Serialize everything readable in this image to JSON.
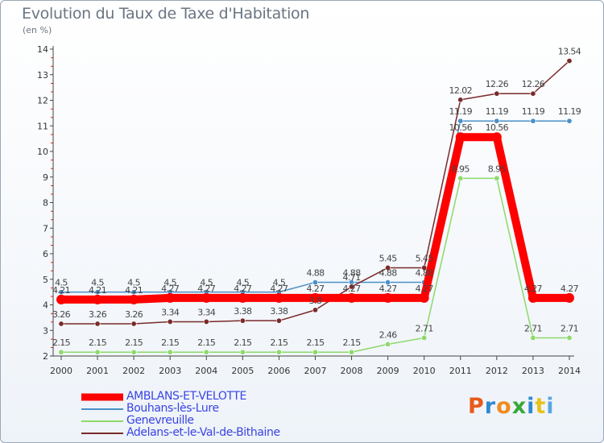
{
  "title": "Evolution du Taux de Taxe d'Habitation",
  "subtitle": "(en %)",
  "logo_text": "Proxiti",
  "logo_colors": [
    "#e85a1a",
    "#2f88d0",
    "#f08c1e",
    "#39a837",
    "#2f88d0",
    "#e8c21a",
    "#5aa6e0"
  ],
  "chart_data": {
    "type": "line",
    "x": [
      "2000",
      "2001",
      "2002",
      "2003",
      "2004",
      "2005",
      "2006",
      "2007",
      "2008",
      "2009",
      "2010",
      "2011",
      "2012",
      "2013",
      "2014"
    ],
    "ylim": [
      2,
      14
    ],
    "yticks": [
      "2",
      "3",
      "4",
      "5",
      "6",
      "7",
      "8",
      "9",
      "10",
      "11",
      "12",
      "13",
      "14"
    ],
    "grid": false,
    "legend_position": "bottom-left",
    "series": [
      {
        "name": "AMBLANS-ET-VELOTTE",
        "color": "#ff0000",
        "values": [
          4.21,
          4.21,
          4.21,
          4.27,
          4.27,
          4.27,
          4.27,
          4.27,
          4.27,
          4.27,
          4.27,
          10.56,
          10.56,
          4.27,
          4.27
        ],
        "labels": [
          "4.21",
          "4.21",
          "4.21",
          "4.27",
          "4.27",
          "4.27",
          "4.27",
          "4.27",
          "4.27",
          "4.27",
          "4.27",
          "10.56",
          "10.56",
          "4.27",
          "4.27"
        ]
      },
      {
        "name": "Bouhans-lès-Lure",
        "color": "#4a90c8",
        "values": [
          4.5,
          4.5,
          4.5,
          4.5,
          4.5,
          4.5,
          4.5,
          4.88,
          4.88,
          4.88,
          4.88,
          11.19,
          11.19,
          11.19,
          11.19
        ],
        "labels": [
          "4.5",
          "4.5",
          "4.5",
          "4.5",
          "4.5",
          "4.5",
          "4.5",
          "4.88",
          "4.88",
          "4.88",
          "4.88",
          "11.19",
          "11.19",
          "11.19",
          "11.19"
        ]
      },
      {
        "name": "Genevreuille",
        "color": "#8dd96a",
        "values": [
          2.15,
          2.15,
          2.15,
          2.15,
          2.15,
          2.15,
          2.15,
          2.15,
          2.15,
          2.46,
          2.71,
          8.95,
          8.95,
          2.71,
          2.71
        ],
        "labels": [
          "2.15",
          "2.15",
          "2.15",
          "2.15",
          "2.15",
          "2.15",
          "2.15",
          "2.15",
          "2.15",
          "2.46",
          "2.71",
          "8.95",
          "8.95",
          "2.71",
          "2.71"
        ]
      },
      {
        "name": "Adelans-et-le-Val-de-Bithaine",
        "color": "#7a2a2a",
        "values": [
          3.26,
          3.26,
          3.26,
          3.34,
          3.34,
          3.38,
          3.38,
          3.8,
          4.71,
          5.45,
          5.45,
          12.02,
          12.26,
          12.26,
          13.54
        ],
        "labels": [
          "3.26",
          "3.26",
          "3.26",
          "3.34",
          "3.34",
          "3.38",
          "3.38",
          "3.8",
          "4.71",
          "5.45",
          "5.45",
          "12.02",
          "12.26",
          "12.26",
          "13.54"
        ]
      }
    ]
  }
}
